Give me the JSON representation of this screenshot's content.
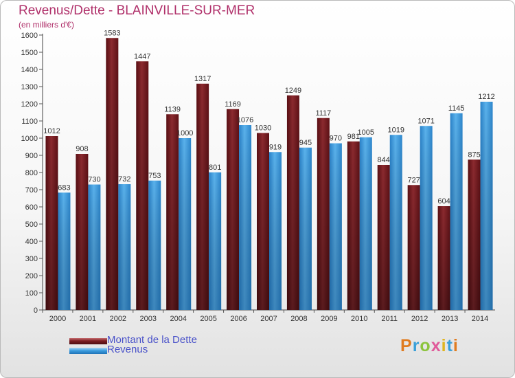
{
  "header": {
    "title": "Revenus/Dette - BLAINVILLE-SUR-MER",
    "subtitle": "(en milliers d'€)"
  },
  "legend": {
    "items": [
      {
        "label": "Montant de la Dette",
        "color": "#7b1e22"
      },
      {
        "label": "Revenus",
        "color": "#3d9ee0"
      }
    ]
  },
  "logo": {
    "text": "Proxiti",
    "letter_colors": [
      "#e07b1f",
      "#3aa0d8",
      "#8cc43c",
      "#e05a9a",
      "#e0b51f",
      "#3aa0d8",
      "#e07b1f"
    ]
  },
  "chart_data": {
    "type": "bar",
    "title": "Revenus/Dette - BLAINVILLE-SUR-MER",
    "ylabel": "(en milliers d'€)",
    "categories": [
      "2000",
      "2001",
      "2002",
      "2003",
      "2004",
      "2005",
      "2006",
      "2007",
      "2008",
      "2009",
      "2010",
      "2011",
      "2012",
      "2013",
      "2014"
    ],
    "series": [
      {
        "name": "Montant de la Dette",
        "color": "#7b1e22",
        "values": [
          1012,
          908,
          1583,
          1447,
          1139,
          1317,
          1169,
          1030,
          1249,
          1117,
          981,
          844,
          727,
          604,
          875
        ]
      },
      {
        "name": "Revenus",
        "color": "#3d9ee0",
        "values": [
          683,
          730,
          732,
          753,
          1000,
          801,
          1076,
          919,
          945,
          970,
          1005,
          1019,
          1071,
          1145,
          1212
        ]
      }
    ],
    "ylim": [
      0,
      1600
    ],
    "ytick_step": 100,
    "grid": false,
    "legend_position": "bottom-left"
  }
}
